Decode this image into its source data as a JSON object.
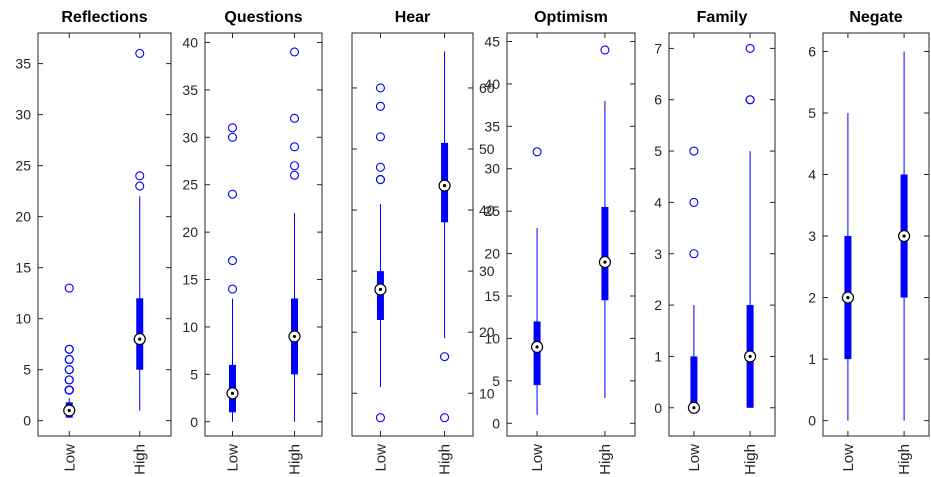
{
  "chart_data": [
    {
      "type": "boxplot",
      "title": "Reflections",
      "categories": [
        "Low",
        "High"
      ],
      "ylim": [
        -1.5,
        38
      ],
      "yticks": [
        0,
        5,
        10,
        15,
        20,
        25,
        30,
        35
      ],
      "tick_side": "left",
      "boxes": [
        {
          "category": "Low",
          "whisker_low": 0.3,
          "q1": 0.3,
          "median": 1,
          "q3": 1.8,
          "whisker_high": 2.2,
          "outliers": [
            3,
            3,
            3,
            3,
            4,
            4,
            5,
            5,
            6,
            6,
            7,
            7,
            3,
            13
          ]
        },
        {
          "category": "High",
          "whisker_low": 1,
          "q1": 5,
          "median": 8,
          "q3": 12,
          "whisker_high": 22,
          "outliers": [
            23,
            24,
            36
          ]
        }
      ]
    },
    {
      "type": "boxplot",
      "title": "Questions",
      "categories": [
        "Low",
        "High"
      ],
      "ylim": [
        -1.5,
        41
      ],
      "yticks": [
        0,
        5,
        10,
        15,
        20,
        25,
        30,
        35,
        40
      ],
      "tick_side": "left",
      "boxes": [
        {
          "category": "Low",
          "whisker_low": 0,
          "q1": 1,
          "median": 3,
          "q3": 6,
          "whisker_high": 13,
          "outliers": [
            14,
            17,
            24,
            30,
            31
          ]
        },
        {
          "category": "High",
          "whisker_low": 0,
          "q1": 5,
          "median": 9,
          "q3": 13,
          "whisker_high": 22,
          "outliers": [
            26,
            27,
            29,
            32,
            39
          ]
        }
      ]
    },
    {
      "type": "boxplot",
      "title": "Hear",
      "categories": [
        "Low",
        "High"
      ],
      "ylim": [
        3,
        69
      ],
      "yticks": [
        10,
        20,
        30,
        40,
        50,
        60
      ],
      "tick_side": "right",
      "boxes": [
        {
          "category": "Low",
          "whisker_low": 11,
          "q1": 22,
          "median": 27,
          "q3": 30,
          "whisker_high": 41,
          "outliers": [
            6,
            45,
            45,
            47,
            52,
            57,
            60
          ]
        },
        {
          "category": "High",
          "whisker_low": 19,
          "q1": 38,
          "median": 44,
          "q3": 51,
          "whisker_high": 66,
          "outliers": [
            6,
            16
          ]
        }
      ]
    },
    {
      "type": "boxplot",
      "title": "Optimism",
      "categories": [
        "Low",
        "High"
      ],
      "ylim": [
        -1.5,
        46
      ],
      "yticks": [
        0,
        5,
        10,
        15,
        20,
        25,
        30,
        35,
        40,
        45
      ],
      "tick_side": "left",
      "boxes": [
        {
          "category": "Low",
          "whisker_low": 1,
          "q1": 4.5,
          "median": 9,
          "q3": 12,
          "whisker_high": 23,
          "outliers": [
            32
          ]
        },
        {
          "category": "High",
          "whisker_low": 3,
          "q1": 14.5,
          "median": 19,
          "q3": 25.5,
          "whisker_high": 38,
          "outliers": [
            44
          ]
        }
      ]
    },
    {
      "type": "boxplot",
      "title": "Family",
      "categories": [
        "Low",
        "High"
      ],
      "ylim": [
        -0.55,
        7.3
      ],
      "yticks": [
        0,
        1,
        2,
        3,
        4,
        5,
        6,
        7
      ],
      "tick_side": "left",
      "boxes": [
        {
          "category": "Low",
          "whisker_low": 0,
          "q1": 0,
          "median": 0,
          "q3": 1,
          "whisker_high": 2,
          "outliers": [
            3,
            4,
            5
          ]
        },
        {
          "category": "High",
          "whisker_low": 0,
          "q1": 0,
          "median": 1,
          "q3": 2,
          "whisker_high": 5,
          "outliers": [
            6,
            6,
            7
          ]
        }
      ]
    },
    {
      "type": "boxplot",
      "title": "Negate",
      "categories": [
        "Low",
        "High"
      ],
      "ylim": [
        -0.25,
        6.3
      ],
      "yticks": [
        0,
        1,
        2,
        3,
        4,
        5,
        6
      ],
      "tick_side": "left",
      "boxes": [
        {
          "category": "Low",
          "whisker_low": 0,
          "q1": 1,
          "median": 2,
          "q3": 3,
          "whisker_high": 5,
          "outliers": []
        },
        {
          "category": "High",
          "whisker_low": 0,
          "q1": 2,
          "median": 3,
          "q3": 4,
          "whisker_high": 6,
          "outliers": []
        }
      ]
    }
  ],
  "colors": {
    "box": "#0000ff",
    "axis": "#262626",
    "title": "#000000"
  },
  "grid": false,
  "legend": "none"
}
